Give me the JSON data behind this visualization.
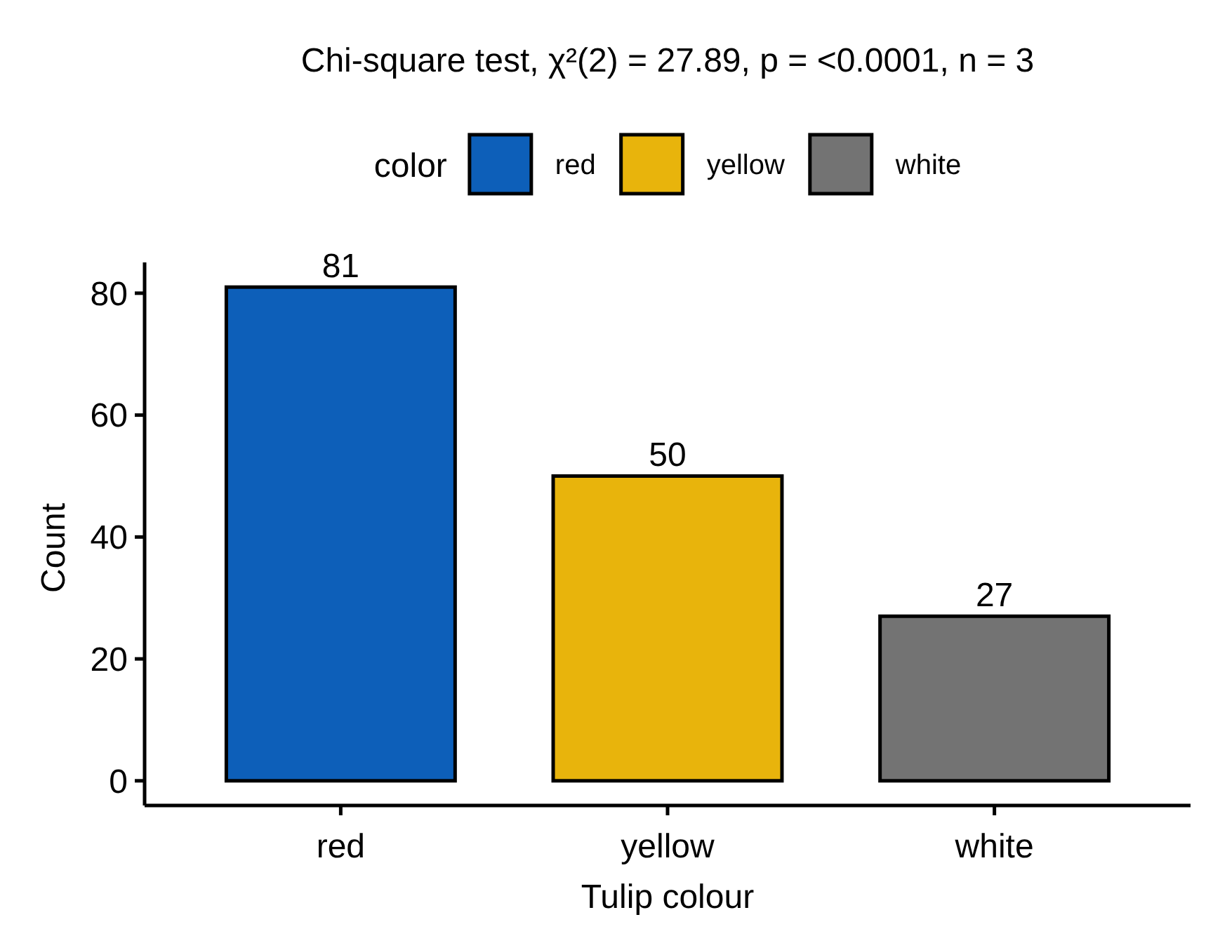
{
  "chart_data": {
    "type": "bar",
    "title": "Chi-square test, χ²(2) = 27.89, p = <0.0001, n = 3",
    "xlabel": "Tulip colour",
    "ylabel": "Count",
    "legend_title": "color",
    "categories": [
      "red",
      "yellow",
      "white"
    ],
    "stacked": true,
    "series": [
      {
        "name": "red",
        "color": "#0d5fb9",
        "values": [
          81,
          null,
          null
        ]
      },
      {
        "name": "yellow",
        "color": "#e8b40c",
        "values": [
          null,
          50,
          null
        ]
      },
      {
        "name": "white",
        "color": "#737373",
        "values": [
          null,
          null,
          27
        ]
      }
    ],
    "ylim": [
      -4.05,
      85.05
    ],
    "yticks": [
      0,
      20,
      40,
      60,
      80
    ],
    "data_labels": true,
    "legend": "top"
  }
}
